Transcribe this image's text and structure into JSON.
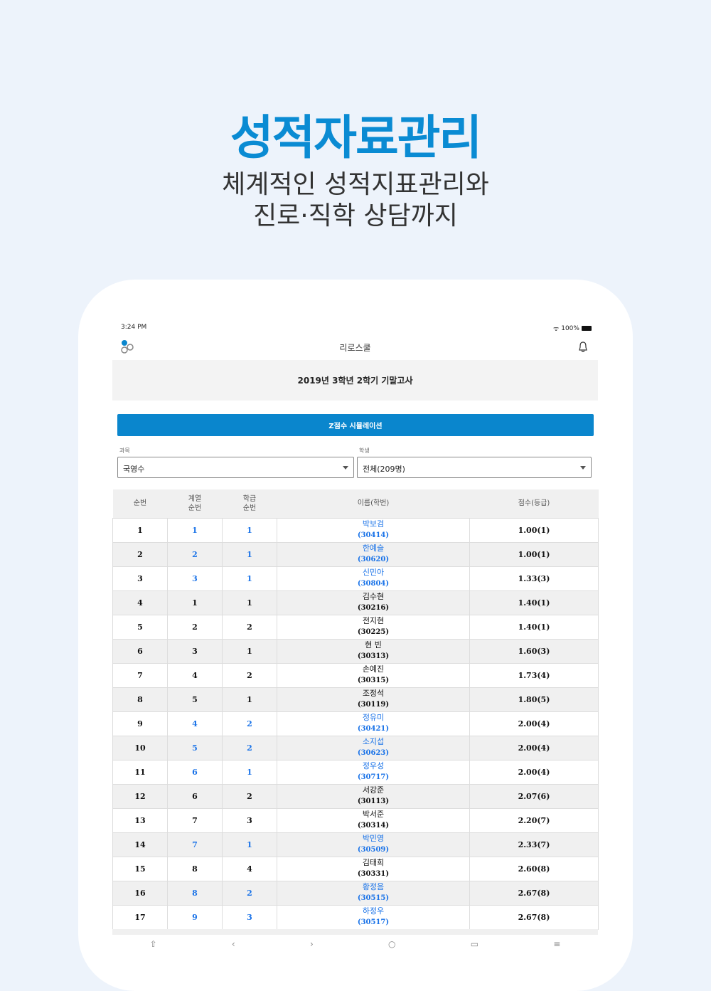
{
  "hero": {
    "title": "성적자료관리",
    "subtitle_line1": "체계적인 성적지표관리와",
    "subtitle_line2": "진로·직학 상담까지"
  },
  "status": {
    "time": "3:24 PM",
    "battery": "100%"
  },
  "app": {
    "title": "리로스쿨",
    "exam": "2019년 3학년 2학기 기말고사",
    "z_button": "Z점수 시뮬레이션"
  },
  "filters": {
    "subject_label": "과목",
    "subject_value": "국영수",
    "student_label": "학생",
    "student_value": "전체(209명)"
  },
  "table": {
    "headers": [
      "순번",
      "계열\n순번",
      "학급\n순번",
      "이름(학번)",
      "점수(등급)"
    ],
    "rows": [
      {
        "no": "1",
        "track": "1",
        "cls": "1",
        "name": "박보검",
        "id": "(30414)",
        "score": "1.00(1)",
        "link": true
      },
      {
        "no": "2",
        "track": "2",
        "cls": "1",
        "name": "한예슬",
        "id": "(30620)",
        "score": "1.00(1)",
        "link": true
      },
      {
        "no": "3",
        "track": "3",
        "cls": "1",
        "name": "신민아",
        "id": "(30804)",
        "score": "1.33(3)",
        "link": true
      },
      {
        "no": "4",
        "track": "1",
        "cls": "1",
        "name": "김수현",
        "id": "(30216)",
        "score": "1.40(1)",
        "link": false
      },
      {
        "no": "5",
        "track": "2",
        "cls": "2",
        "name": "전지현",
        "id": "(30225)",
        "score": "1.40(1)",
        "link": false
      },
      {
        "no": "6",
        "track": "3",
        "cls": "1",
        "name": "현 빈",
        "id": "(30313)",
        "score": "1.60(3)",
        "link": false
      },
      {
        "no": "7",
        "track": "4",
        "cls": "2",
        "name": "손예진",
        "id": "(30315)",
        "score": "1.73(4)",
        "link": false
      },
      {
        "no": "8",
        "track": "5",
        "cls": "1",
        "name": "조정석",
        "id": "(30119)",
        "score": "1.80(5)",
        "link": false
      },
      {
        "no": "9",
        "track": "4",
        "cls": "2",
        "name": "정유미",
        "id": "(30421)",
        "score": "2.00(4)",
        "link": true
      },
      {
        "no": "10",
        "track": "5",
        "cls": "2",
        "name": "소지섭",
        "id": "(30623)",
        "score": "2.00(4)",
        "link": true
      },
      {
        "no": "11",
        "track": "6",
        "cls": "1",
        "name": "정우성",
        "id": "(30717)",
        "score": "2.00(4)",
        "link": true
      },
      {
        "no": "12",
        "track": "6",
        "cls": "2",
        "name": "서강준",
        "id": "(30113)",
        "score": "2.07(6)",
        "link": false
      },
      {
        "no": "13",
        "track": "7",
        "cls": "3",
        "name": "박서준",
        "id": "(30314)",
        "score": "2.20(7)",
        "link": false
      },
      {
        "no": "14",
        "track": "7",
        "cls": "1",
        "name": "박민영",
        "id": "(30509)",
        "score": "2.33(7)",
        "link": true
      },
      {
        "no": "15",
        "track": "8",
        "cls": "4",
        "name": "김태희",
        "id": "(30331)",
        "score": "2.60(8)",
        "link": false
      },
      {
        "no": "16",
        "track": "8",
        "cls": "2",
        "name": "황정음",
        "id": "(30515)",
        "score": "2.67(8)",
        "link": true
      },
      {
        "no": "17",
        "track": "9",
        "cls": "3",
        "name": "하정우",
        "id": "(30517)",
        "score": "2.67(8)",
        "link": true
      }
    ]
  },
  "colors": {
    "accent": "#0a86cd",
    "link": "#1a73e8",
    "hero": "#0a8bd3"
  }
}
